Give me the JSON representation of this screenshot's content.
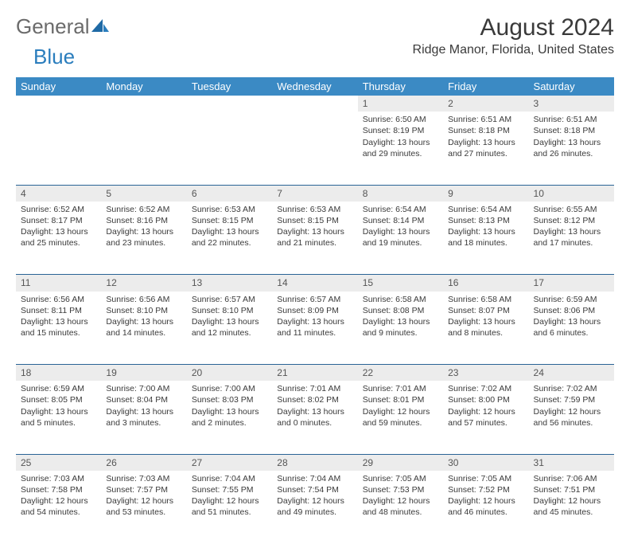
{
  "logo": {
    "part1": "General",
    "part2": "Blue"
  },
  "title": "August 2024",
  "location": "Ridge Manor, Florida, United States",
  "colors": {
    "header_bg": "#3b8ac4",
    "header_text": "#ffffff",
    "daynum_bg": "#ececec",
    "grid_line": "#2a6496",
    "logo_gray": "#6b6b6b",
    "logo_blue": "#2a7dbd",
    "text": "#3a3a3a"
  },
  "weekdays": [
    "Sunday",
    "Monday",
    "Tuesday",
    "Wednesday",
    "Thursday",
    "Friday",
    "Saturday"
  ],
  "weeks": [
    [
      null,
      null,
      null,
      null,
      {
        "day": "1",
        "sunrise": "6:50 AM",
        "sunset": "8:19 PM",
        "daylight": "13 hours and 29 minutes."
      },
      {
        "day": "2",
        "sunrise": "6:51 AM",
        "sunset": "8:18 PM",
        "daylight": "13 hours and 27 minutes."
      },
      {
        "day": "3",
        "sunrise": "6:51 AM",
        "sunset": "8:18 PM",
        "daylight": "13 hours and 26 minutes."
      }
    ],
    [
      {
        "day": "4",
        "sunrise": "6:52 AM",
        "sunset": "8:17 PM",
        "daylight": "13 hours and 25 minutes."
      },
      {
        "day": "5",
        "sunrise": "6:52 AM",
        "sunset": "8:16 PM",
        "daylight": "13 hours and 23 minutes."
      },
      {
        "day": "6",
        "sunrise": "6:53 AM",
        "sunset": "8:15 PM",
        "daylight": "13 hours and 22 minutes."
      },
      {
        "day": "7",
        "sunrise": "6:53 AM",
        "sunset": "8:15 PM",
        "daylight": "13 hours and 21 minutes."
      },
      {
        "day": "8",
        "sunrise": "6:54 AM",
        "sunset": "8:14 PM",
        "daylight": "13 hours and 19 minutes."
      },
      {
        "day": "9",
        "sunrise": "6:54 AM",
        "sunset": "8:13 PM",
        "daylight": "13 hours and 18 minutes."
      },
      {
        "day": "10",
        "sunrise": "6:55 AM",
        "sunset": "8:12 PM",
        "daylight": "13 hours and 17 minutes."
      }
    ],
    [
      {
        "day": "11",
        "sunrise": "6:56 AM",
        "sunset": "8:11 PM",
        "daylight": "13 hours and 15 minutes."
      },
      {
        "day": "12",
        "sunrise": "6:56 AM",
        "sunset": "8:10 PM",
        "daylight": "13 hours and 14 minutes."
      },
      {
        "day": "13",
        "sunrise": "6:57 AM",
        "sunset": "8:10 PM",
        "daylight": "13 hours and 12 minutes."
      },
      {
        "day": "14",
        "sunrise": "6:57 AM",
        "sunset": "8:09 PM",
        "daylight": "13 hours and 11 minutes."
      },
      {
        "day": "15",
        "sunrise": "6:58 AM",
        "sunset": "8:08 PM",
        "daylight": "13 hours and 9 minutes."
      },
      {
        "day": "16",
        "sunrise": "6:58 AM",
        "sunset": "8:07 PM",
        "daylight": "13 hours and 8 minutes."
      },
      {
        "day": "17",
        "sunrise": "6:59 AM",
        "sunset": "8:06 PM",
        "daylight": "13 hours and 6 minutes."
      }
    ],
    [
      {
        "day": "18",
        "sunrise": "6:59 AM",
        "sunset": "8:05 PM",
        "daylight": "13 hours and 5 minutes."
      },
      {
        "day": "19",
        "sunrise": "7:00 AM",
        "sunset": "8:04 PM",
        "daylight": "13 hours and 3 minutes."
      },
      {
        "day": "20",
        "sunrise": "7:00 AM",
        "sunset": "8:03 PM",
        "daylight": "13 hours and 2 minutes."
      },
      {
        "day": "21",
        "sunrise": "7:01 AM",
        "sunset": "8:02 PM",
        "daylight": "13 hours and 0 minutes."
      },
      {
        "day": "22",
        "sunrise": "7:01 AM",
        "sunset": "8:01 PM",
        "daylight": "12 hours and 59 minutes."
      },
      {
        "day": "23",
        "sunrise": "7:02 AM",
        "sunset": "8:00 PM",
        "daylight": "12 hours and 57 minutes."
      },
      {
        "day": "24",
        "sunrise": "7:02 AM",
        "sunset": "7:59 PM",
        "daylight": "12 hours and 56 minutes."
      }
    ],
    [
      {
        "day": "25",
        "sunrise": "7:03 AM",
        "sunset": "7:58 PM",
        "daylight": "12 hours and 54 minutes."
      },
      {
        "day": "26",
        "sunrise": "7:03 AM",
        "sunset": "7:57 PM",
        "daylight": "12 hours and 53 minutes."
      },
      {
        "day": "27",
        "sunrise": "7:04 AM",
        "sunset": "7:55 PM",
        "daylight": "12 hours and 51 minutes."
      },
      {
        "day": "28",
        "sunrise": "7:04 AM",
        "sunset": "7:54 PM",
        "daylight": "12 hours and 49 minutes."
      },
      {
        "day": "29",
        "sunrise": "7:05 AM",
        "sunset": "7:53 PM",
        "daylight": "12 hours and 48 minutes."
      },
      {
        "day": "30",
        "sunrise": "7:05 AM",
        "sunset": "7:52 PM",
        "daylight": "12 hours and 46 minutes."
      },
      {
        "day": "31",
        "sunrise": "7:06 AM",
        "sunset": "7:51 PM",
        "daylight": "12 hours and 45 minutes."
      }
    ]
  ],
  "labels": {
    "sunrise": "Sunrise:",
    "sunset": "Sunset:",
    "daylight": "Daylight:"
  }
}
